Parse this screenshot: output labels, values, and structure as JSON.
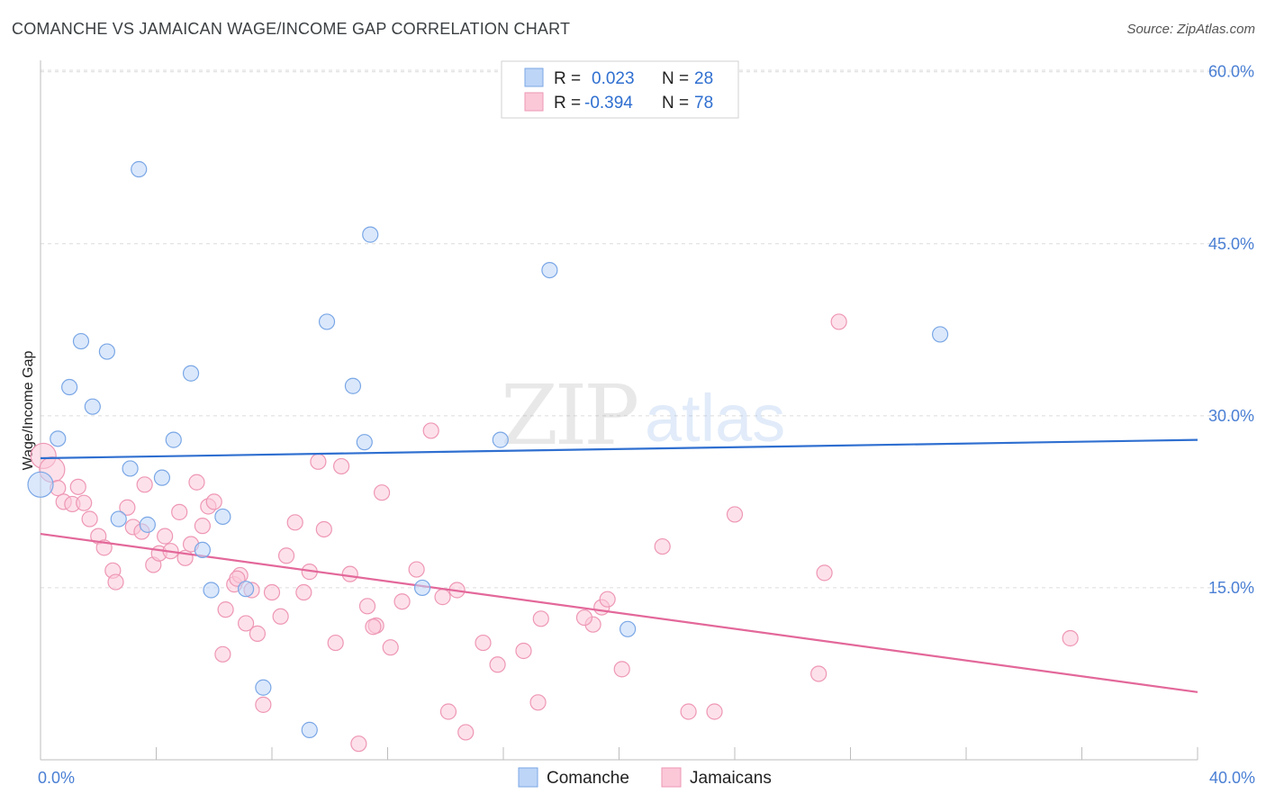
{
  "title": "COMANCHE VS JAMAICAN WAGE/INCOME GAP CORRELATION CHART",
  "source": "Source: ZipAtlas.com",
  "watermark": {
    "zip": "ZIP",
    "atlas": "atlas"
  },
  "colors": {
    "comanche_fill": "#bdd5f7",
    "comanche_stroke": "#7aa7e6",
    "comanche_line": "#2f6fd0",
    "jamaican_fill": "#fbc8d8",
    "jamaican_stroke": "#ee97b4",
    "jamaican_line": "#e3689a",
    "tick": "#4a7fd4",
    "grid": "#dcdcdc"
  },
  "legend": {
    "r_label": "R =",
    "n_label": "N =",
    "rows": [
      {
        "series": "comanche",
        "r": "0.023",
        "n": "28"
      },
      {
        "series": "jamaican",
        "r": "-0.394",
        "n": "78"
      }
    ]
  },
  "bottom_legend": [
    {
      "series": "comanche",
      "label": "Comanche"
    },
    {
      "series": "jamaican",
      "label": "Jamaicans"
    }
  ],
  "chart_data": {
    "type": "scatter",
    "title": "COMANCHE VS JAMAICAN WAGE/INCOME GAP CORRELATION CHART",
    "xlabel": "",
    "ylabel": "Wage/Income Gap",
    "xlim": [
      0,
      40
    ],
    "ylim": [
      0,
      61
    ],
    "x_tick_labels": [
      {
        "value": 0,
        "label": "0.0%"
      },
      {
        "value": 40,
        "label": "40.0%"
      }
    ],
    "x_minor_ticks": [
      4,
      8,
      12,
      16,
      20,
      24,
      28,
      32,
      36,
      40
    ],
    "y_ticks": [
      {
        "value": 15,
        "label": "15.0%"
      },
      {
        "value": 30,
        "label": "30.0%"
      },
      {
        "value": 45,
        "label": "45.0%"
      },
      {
        "value": 60,
        "label": "60.0%"
      }
    ],
    "series": [
      {
        "name": "Comanche",
        "key": "comanche",
        "r": 0.023,
        "n": 28,
        "trend": {
          "x": [
            0,
            40
          ],
          "y": [
            26.3,
            27.9
          ]
        },
        "points": [
          [
            0.0,
            24.0
          ],
          [
            0.6,
            28.0
          ],
          [
            1.0,
            32.5
          ],
          [
            1.4,
            36.5
          ],
          [
            1.8,
            30.8
          ],
          [
            2.3,
            35.6
          ],
          [
            2.7,
            21.0
          ],
          [
            3.1,
            25.4
          ],
          [
            3.4,
            51.5
          ],
          [
            3.7,
            20.5
          ],
          [
            4.2,
            24.6
          ],
          [
            4.6,
            27.9
          ],
          [
            5.2,
            33.7
          ],
          [
            5.6,
            18.3
          ],
          [
            5.9,
            14.8
          ],
          [
            6.3,
            21.2
          ],
          [
            7.1,
            14.9
          ],
          [
            7.7,
            6.3
          ],
          [
            9.3,
            2.6
          ],
          [
            9.9,
            38.2
          ],
          [
            10.8,
            32.6
          ],
          [
            11.2,
            27.7
          ],
          [
            11.4,
            45.8
          ],
          [
            13.2,
            15.0
          ],
          [
            15.9,
            27.9
          ],
          [
            17.6,
            42.7
          ],
          [
            20.3,
            11.4
          ],
          [
            31.1,
            37.1
          ]
        ]
      },
      {
        "name": "Jamaicans",
        "key": "jamaican",
        "r": -0.394,
        "n": 78,
        "trend": {
          "x": [
            0,
            40
          ],
          "y": [
            19.7,
            5.9
          ]
        },
        "points": [
          [
            0.1,
            26.5
          ],
          [
            0.4,
            25.3
          ],
          [
            0.6,
            23.7
          ],
          [
            0.8,
            22.5
          ],
          [
            1.1,
            22.3
          ],
          [
            1.3,
            23.8
          ],
          [
            1.5,
            22.4
          ],
          [
            1.7,
            21.0
          ],
          [
            2.0,
            19.5
          ],
          [
            2.2,
            18.5
          ],
          [
            2.5,
            16.5
          ],
          [
            2.6,
            15.5
          ],
          [
            3.0,
            22.0
          ],
          [
            3.2,
            20.3
          ],
          [
            3.5,
            19.9
          ],
          [
            3.6,
            24.0
          ],
          [
            3.9,
            17.0
          ],
          [
            4.1,
            18.0
          ],
          [
            4.3,
            19.5
          ],
          [
            4.5,
            18.2
          ],
          [
            4.8,
            21.6
          ],
          [
            5.0,
            17.6
          ],
          [
            5.2,
            18.8
          ],
          [
            5.4,
            24.2
          ],
          [
            5.6,
            20.4
          ],
          [
            5.8,
            22.1
          ],
          [
            6.0,
            22.5
          ],
          [
            6.3,
            9.2
          ],
          [
            6.4,
            13.1
          ],
          [
            6.7,
            15.3
          ],
          [
            6.9,
            16.1
          ],
          [
            7.1,
            11.9
          ],
          [
            7.3,
            14.8
          ],
          [
            7.5,
            11.0
          ],
          [
            7.7,
            4.8
          ],
          [
            8.0,
            14.6
          ],
          [
            8.3,
            12.5
          ],
          [
            8.5,
            17.8
          ],
          [
            8.8,
            20.7
          ],
          [
            9.3,
            16.4
          ],
          [
            9.6,
            26.0
          ],
          [
            9.8,
            20.1
          ],
          [
            10.2,
            10.2
          ],
          [
            10.4,
            25.6
          ],
          [
            10.7,
            16.2
          ],
          [
            11.0,
            1.4
          ],
          [
            11.3,
            13.4
          ],
          [
            11.6,
            11.7
          ],
          [
            11.8,
            23.3
          ],
          [
            12.1,
            9.8
          ],
          [
            12.5,
            13.8
          ],
          [
            13.0,
            16.6
          ],
          [
            13.5,
            28.7
          ],
          [
            14.1,
            4.2
          ],
          [
            14.4,
            14.8
          ],
          [
            14.7,
            2.4
          ],
          [
            15.3,
            10.2
          ],
          [
            15.8,
            8.3
          ],
          [
            16.7,
            9.5
          ],
          [
            17.2,
            5.0
          ],
          [
            17.3,
            12.3
          ],
          [
            19.1,
            11.8
          ],
          [
            19.4,
            13.3
          ],
          [
            19.6,
            14.0
          ],
          [
            20.1,
            7.9
          ],
          [
            21.5,
            18.6
          ],
          [
            22.4,
            4.2
          ],
          [
            23.3,
            4.2
          ],
          [
            24.0,
            21.4
          ],
          [
            26.9,
            7.5
          ],
          [
            27.1,
            16.3
          ],
          [
            27.6,
            38.2
          ],
          [
            35.6,
            10.6
          ],
          [
            18.8,
            12.4
          ],
          [
            13.9,
            14.2
          ],
          [
            9.1,
            14.6
          ],
          [
            6.8,
            15.8
          ],
          [
            11.5,
            11.6
          ]
        ]
      }
    ]
  }
}
